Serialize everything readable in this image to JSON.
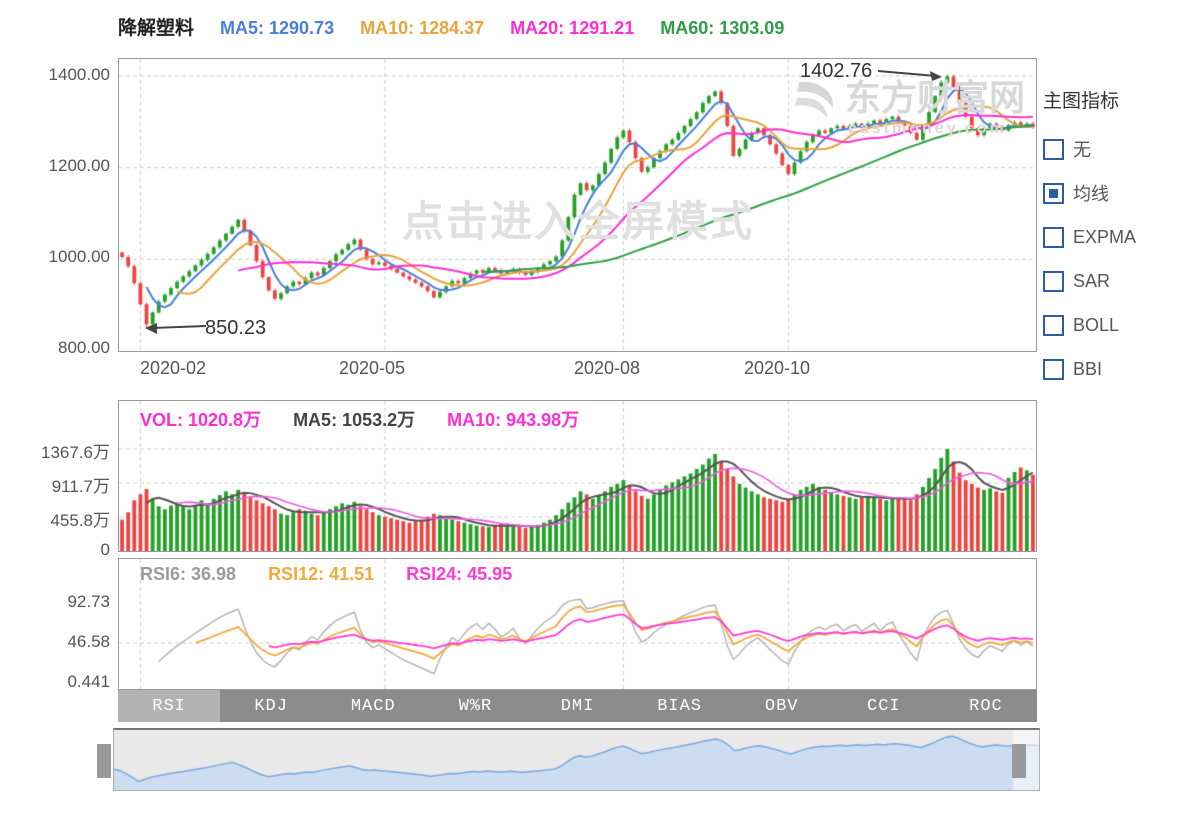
{
  "header": {
    "title": "降解塑料",
    "ma_items": [
      {
        "text": "MA5: 1290.73",
        "color": "#4a7ede"
      },
      {
        "text": "MA10: 1284.37",
        "color": "#e8a33d"
      },
      {
        "text": "MA20: 1291.21",
        "color": "#ff2ed4"
      },
      {
        "text": "MA60: 1303.09",
        "color": "#2f9e44"
      }
    ]
  },
  "sidebar": {
    "title": "主图指标",
    "items": [
      {
        "label": "无",
        "checked": false
      },
      {
        "label": "均线",
        "checked": true
      },
      {
        "label": "EXPMA",
        "checked": false
      },
      {
        "label": "SAR",
        "checked": false
      },
      {
        "label": "BOLL",
        "checked": false
      },
      {
        "label": "BBI",
        "checked": false
      }
    ]
  },
  "main_chart": {
    "ytick_labels": [
      "1400.00",
      "1200.00",
      "1000.00",
      "800.00"
    ],
    "xtick_labels": [
      "2020-02",
      "2020-05",
      "2020-08",
      "2020-10"
    ],
    "watermark_center": "点击进入全屏模式",
    "watermark_logo": "东方财富网",
    "watermark_sub": "eastmoney.com",
    "annotation_high": "1402.76",
    "annotation_low": "850.23"
  },
  "volume_pane": {
    "labels": [
      {
        "text": "VOL: 1020.8万",
        "color": "#ff2ed4"
      },
      {
        "text": "MA5: 1053.2万",
        "color": "#444444"
      },
      {
        "text": "MA10: 943.98万",
        "color": "#ff2ed4"
      }
    ],
    "ytick_labels": [
      "1367.6万",
      "911.7万",
      "455.8万",
      "0"
    ]
  },
  "rsi_pane": {
    "labels": [
      {
        "text": "RSI6: 36.98",
        "color": "#9a9a9a"
      },
      {
        "text": "RSI12: 41.51",
        "color": "#f3a93c"
      },
      {
        "text": "RSI24: 45.95",
        "color": "#ff3bd4"
      }
    ],
    "ytick_labels": [
      "92.73",
      "46.58",
      "0.441"
    ]
  },
  "tabs": {
    "items": [
      "RSI",
      "KDJ",
      "MACD",
      "W%R",
      "DMI",
      "BIAS",
      "OBV",
      "CCI",
      "ROC"
    ],
    "active": "RSI"
  },
  "colors": {
    "ma5": "#4a7ede",
    "ma10": "#e8a33d",
    "ma20": "#ff2ed4",
    "ma60": "#2f9e44",
    "candle_up": "#23a127",
    "candle_down": "#ec4440",
    "vol_ma5": "#555555",
    "vol_ma10": "#f05ae8",
    "rsi6": "#b0b0b0",
    "rsi12": "#f3a93c",
    "rsi24": "#ff3bd4",
    "grid": "#cccccc",
    "frame": "#999999",
    "tab_bg": "#8c8c8c",
    "tab_active_bg": "#b3b3b3",
    "nav_line": "#78a8dc",
    "nav_fill": "#c9dcf2"
  },
  "chart_data": {
    "type": "candlestick",
    "panes": [
      "price_with_ma",
      "volume",
      "rsi"
    ],
    "title": "降解塑料",
    "x_tick_labels": [
      "2020-02",
      "2020-05",
      "2020-08",
      "2020-10"
    ],
    "x_tick_indices": [
      3,
      43,
      82,
      109
    ],
    "price_axis": {
      "ylim": [
        800,
        1400
      ],
      "ticks": [
        800,
        1000,
        1200,
        1400
      ]
    },
    "volume_axis": {
      "ticks_wan": [
        0,
        455.8,
        911.7,
        1367.6
      ]
    },
    "rsi_axis": {
      "ticks": [
        0.441,
        46.58,
        92.73
      ]
    },
    "ma_periods": [
      5,
      10,
      20,
      60
    ],
    "ma_current": {
      "MA5": 1290.73,
      "MA10": 1284.37,
      "MA20": 1291.21,
      "MA60": 1303.09
    },
    "vol_ma_periods": [
      5,
      10
    ],
    "vol_current": {
      "VOL": 1020.8,
      "MA5": 1053.2,
      "MA10": 943.98
    },
    "rsi_periods": [
      6,
      12,
      24
    ],
    "rsi_current": {
      "RSI6": 36.98,
      "RSI12": 41.51,
      "RSI24": 45.95
    },
    "extremes": {
      "high": 1402.76,
      "high_index": 135,
      "low": 850.23,
      "low_index": 4
    },
    "first_open": 1015,
    "closes": [
      1005,
      985,
      948,
      902,
      858,
      884,
      908,
      923,
      937,
      951,
      963,
      974,
      987,
      999,
      1012,
      1026,
      1041,
      1056,
      1071,
      1086,
      1062,
      1031,
      996,
      961,
      932,
      914,
      926,
      941,
      951,
      946,
      959,
      971,
      965,
      981,
      996,
      1011,
      1021,
      1033,
      1043,
      1021,
      1001,
      989,
      993,
      986,
      979,
      971,
      963,
      956,
      949,
      941,
      931,
      917,
      929,
      941,
      953,
      948,
      959,
      969,
      976,
      971,
      981,
      976,
      969,
      973,
      979,
      971,
      966,
      973,
      981,
      989,
      996,
      1006,
      1041,
      1092,
      1141,
      1166,
      1151,
      1161,
      1186,
      1211,
      1241,
      1266,
      1281,
      1256,
      1221,
      1191,
      1201,
      1221,
      1236,
      1251,
      1261,
      1276,
      1291,
      1306,
      1321,
      1341,
      1356,
      1366,
      1341,
      1291,
      1226,
      1241,
      1261,
      1276,
      1286,
      1271,
      1251,
      1231,
      1206,
      1186,
      1211,
      1236,
      1256,
      1271,
      1281,
      1276,
      1286,
      1291,
      1283,
      1291,
      1296,
      1289,
      1296,
      1303,
      1296,
      1306,
      1311,
      1301,
      1291,
      1276,
      1261,
      1291,
      1321,
      1356,
      1386,
      1399,
      1376,
      1341,
      1311,
      1286,
      1271,
      1286,
      1296,
      1289,
      1281,
      1293,
      1299,
      1291,
      1296,
      1289
    ],
    "volumes_wan": [
      420,
      520,
      680,
      760,
      830,
      700,
      600,
      560,
      610,
      650,
      600,
      560,
      620,
      680,
      640,
      700,
      750,
      800,
      760,
      820,
      780,
      720,
      680,
      640,
      600,
      560,
      500,
      480,
      520,
      560,
      540,
      500,
      480,
      520,
      560,
      600,
      640,
      620,
      660,
      600,
      560,
      520,
      480,
      460,
      440,
      420,
      400,
      380,
      400,
      420,
      460,
      500,
      480,
      440,
      420,
      400,
      380,
      360,
      340,
      330,
      320,
      340,
      360,
      350,
      330,
      320,
      310,
      330,
      350,
      380,
      420,
      480,
      560,
      650,
      720,
      800,
      760,
      700,
      740,
      800,
      860,
      900,
      950,
      880,
      800,
      740,
      700,
      760,
      820,
      880,
      920,
      960,
      1000,
      1040,
      1100,
      1160,
      1240,
      1300,
      1200,
      1100,
      1000,
      900,
      850,
      800,
      760,
      720,
      700,
      680,
      660,
      700,
      760,
      820,
      860,
      900,
      860,
      820,
      780,
      760,
      740,
      720,
      700,
      720,
      740,
      720,
      700,
      680,
      700,
      720,
      700,
      680,
      760,
      860,
      980,
      1100,
      1250,
      1367.6,
      1200,
      1050,
      950,
      900,
      850,
      820,
      840,
      800,
      780,
      980,
      1060,
      1120,
      1082,
      1020.8
    ]
  }
}
